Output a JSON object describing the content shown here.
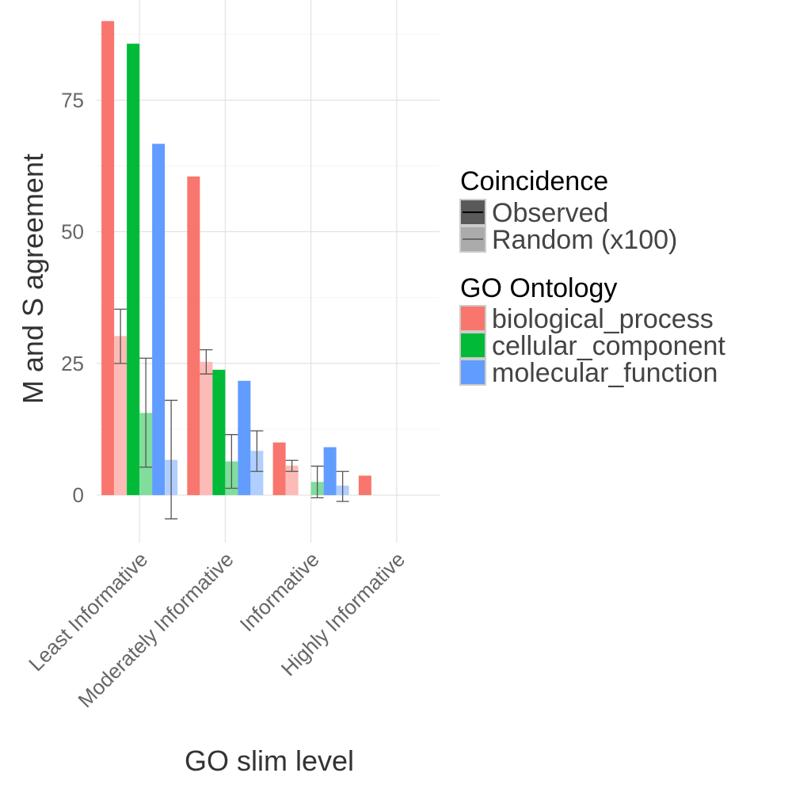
{
  "chart_data": {
    "type": "bar",
    "title": "",
    "xlabel": "GO slim level",
    "ylabel": "M and S agreement",
    "categories": [
      "Least Informative",
      "Moderately Informative",
      "Informative",
      "Highly Informative"
    ],
    "ylim": [
      -9,
      94
    ],
    "yticks": [
      0,
      25,
      50,
      75
    ],
    "grid": true,
    "legend_position": "right",
    "series": [
      {
        "name": "biological_process",
        "color": "#F8766D",
        "observed": [
          90,
          60.5,
          10,
          3.7
        ],
        "random": [
          30.2,
          25.3,
          5.6,
          null
        ],
        "random_error": [
          [
            25,
            35.3
          ],
          [
            23,
            27.6
          ],
          [
            4.5,
            6.6
          ],
          null
        ]
      },
      {
        "name": "cellular_component",
        "color": "#00BA38",
        "observed": [
          85.7,
          23.8,
          null,
          null
        ],
        "random": [
          15.6,
          6.4,
          2.5,
          null
        ],
        "random_error": [
          [
            5.3,
            26
          ],
          [
            1.3,
            11.5
          ],
          [
            -0.5,
            5.5
          ],
          null
        ]
      },
      {
        "name": "molecular_function",
        "color": "#619CFF",
        "observed": [
          66.7,
          21.7,
          9.1,
          null
        ],
        "random": [
          6.7,
          8.4,
          1.8,
          null
        ],
        "random_error": [
          [
            -4.5,
            18
          ],
          [
            4.5,
            12.2
          ],
          [
            -1.2,
            4.5
          ],
          null
        ]
      }
    ],
    "legends": [
      {
        "title": "Coincidence",
        "items": [
          "Observed",
          "Random (x100)"
        ]
      },
      {
        "title": "GO Ontology",
        "items": [
          "biological_process",
          "cellular_component",
          "molecular_function"
        ]
      }
    ]
  }
}
